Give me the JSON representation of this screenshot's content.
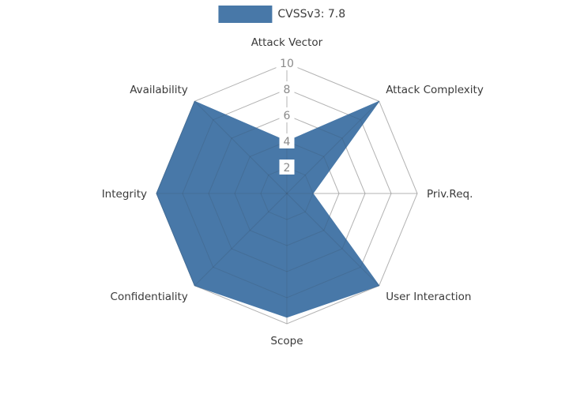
{
  "legend": {
    "label": "CVSSv3: 7.8",
    "swatch_color": "#4878a8"
  },
  "chart_data": {
    "type": "radar",
    "title": "CVSSv3: 7.8",
    "categories": [
      "Attack Vector",
      "Attack Complexity",
      "Priv.Req.",
      "User Interaction",
      "Scope",
      "Confidentiality",
      "Integrity",
      "Availability"
    ],
    "series": [
      {
        "name": "CVSSv3: 7.8",
        "color": "#4878a8",
        "values": [
          4,
          10,
          2,
          10,
          9.5,
          10,
          10,
          10
        ]
      }
    ],
    "radial_ticks": [
      2,
      4,
      6,
      8,
      10
    ],
    "radial_range": [
      0,
      10
    ],
    "grid": true,
    "grid_color": "#c9c9c9",
    "tick_label_color": "#8a8a8a",
    "axis_label_color": "#3a3a3a",
    "legend_position": "top"
  }
}
